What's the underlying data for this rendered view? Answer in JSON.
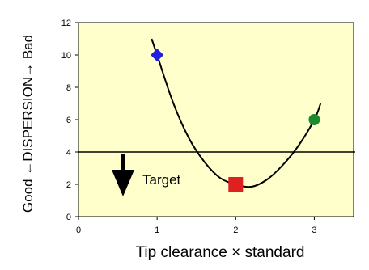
{
  "chart_data": {
    "type": "scatter",
    "title": "",
    "xlabel": "Tip clearance × standard",
    "ylabel": "Good ←DISPERSION→ Bad",
    "xlim": [
      0,
      3.5
    ],
    "ylim": [
      0,
      12
    ],
    "x_ticks": [
      "0",
      "1",
      "2",
      "3"
    ],
    "y_ticks": [
      "0",
      "2",
      "4",
      "6",
      "8",
      "10",
      "12"
    ],
    "grid": false,
    "points": [
      {
        "x": 1,
        "y": 10,
        "marker": "diamond",
        "color": "#1f1fe0"
      },
      {
        "x": 2,
        "y": 2,
        "marker": "square",
        "color": "#e02020"
      },
      {
        "x": 3,
        "y": 6,
        "marker": "circle",
        "color": "#1e8a2e"
      }
    ],
    "trend_curve": [
      [
        0.93,
        11.0
      ],
      [
        1.0,
        10.0
      ],
      [
        1.2,
        7.1
      ],
      [
        1.4,
        4.9
      ],
      [
        1.6,
        3.4
      ],
      [
        1.8,
        2.4
      ],
      [
        2.0,
        2.0
      ],
      [
        2.2,
        1.85
      ],
      [
        2.4,
        2.3
      ],
      [
        2.6,
        3.2
      ],
      [
        2.8,
        4.4
      ],
      [
        3.0,
        6.0
      ],
      [
        3.08,
        7.0
      ]
    ],
    "target": {
      "label": "Target",
      "y": 4
    },
    "colors": {
      "plot_background": "#ffffcc",
      "page_background": "#ffffff",
      "line": "#000000"
    }
  }
}
